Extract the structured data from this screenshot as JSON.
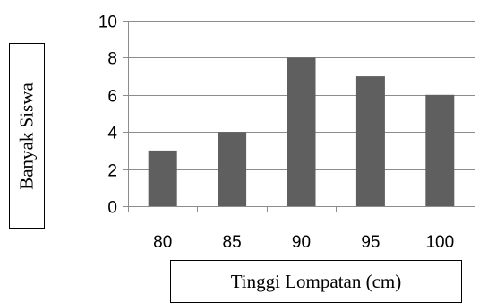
{
  "chart_data": {
    "type": "bar",
    "categories": [
      "80",
      "85",
      "90",
      "95",
      "100"
    ],
    "values": [
      3,
      4,
      8,
      7,
      6
    ],
    "ylim": [
      0,
      10
    ],
    "yticks": [
      0,
      2,
      4,
      6,
      8,
      10
    ],
    "xlabel": "Tinggi Lompatan (cm)",
    "ylabel": "Banyak Siswa",
    "grid": true,
    "bar_color": "#5f5f5f",
    "grid_color": "#8c8c8c"
  }
}
